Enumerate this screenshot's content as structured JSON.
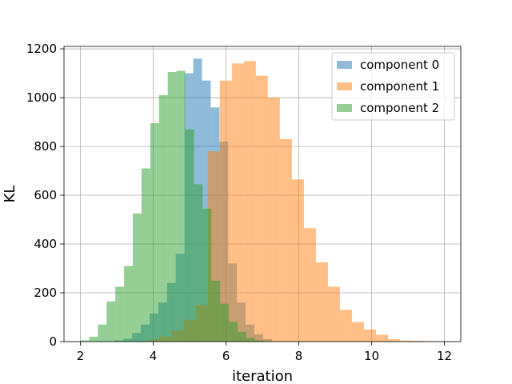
{
  "chart_data": {
    "type": "histogram",
    "title": "",
    "xlabel": "iteration",
    "ylabel": "KL",
    "xlim": [
      1.55,
      12.45
    ],
    "ylim": [
      0,
      1210
    ],
    "xticks": [
      2,
      4,
      6,
      8,
      10,
      12
    ],
    "xtick_labels": [
      "2",
      "4",
      "6",
      "8",
      "10",
      "12"
    ],
    "yticks": [
      0,
      200,
      400,
      600,
      800,
      1000,
      1200
    ],
    "ytick_labels": [
      "0",
      "200",
      "400",
      "600",
      "800",
      "1000",
      "1200"
    ],
    "grid": true,
    "legend_position": "upper-right",
    "bar_opacity": 0.5,
    "series": [
      {
        "name": "component 0",
        "color": "#1f77b4",
        "bins": [
          {
            "x0": 2.94,
            "x1": 3.18,
            "count": 5
          },
          {
            "x0": 3.18,
            "x1": 3.42,
            "count": 12
          },
          {
            "x0": 3.42,
            "x1": 3.66,
            "count": 35
          },
          {
            "x0": 3.66,
            "x1": 3.9,
            "count": 70
          },
          {
            "x0": 3.9,
            "x1": 4.14,
            "count": 115
          },
          {
            "x0": 4.14,
            "x1": 4.38,
            "count": 160
          },
          {
            "x0": 4.38,
            "x1": 4.62,
            "count": 240
          },
          {
            "x0": 4.62,
            "x1": 4.86,
            "count": 360
          },
          {
            "x0": 4.86,
            "x1": 5.1,
            "count": 1100
          },
          {
            "x0": 5.1,
            "x1": 5.34,
            "count": 1160
          },
          {
            "x0": 5.34,
            "x1": 5.58,
            "count": 1070
          },
          {
            "x0": 5.58,
            "x1": 5.82,
            "count": 960
          },
          {
            "x0": 5.82,
            "x1": 6.06,
            "count": 820
          },
          {
            "x0": 6.06,
            "x1": 6.3,
            "count": 320
          },
          {
            "x0": 6.3,
            "x1": 6.54,
            "count": 160
          },
          {
            "x0": 6.54,
            "x1": 6.78,
            "count": 70
          },
          {
            "x0": 6.78,
            "x1": 7.02,
            "count": 30
          },
          {
            "x0": 7.02,
            "x1": 7.26,
            "count": 10
          }
        ]
      },
      {
        "name": "component 1",
        "color": "#ff7f0e",
        "bins": [
          {
            "x0": 3.85,
            "x1": 4.18,
            "count": 8
          },
          {
            "x0": 4.18,
            "x1": 4.51,
            "count": 20
          },
          {
            "x0": 4.51,
            "x1": 4.84,
            "count": 45
          },
          {
            "x0": 4.84,
            "x1": 5.17,
            "count": 90
          },
          {
            "x0": 5.17,
            "x1": 5.5,
            "count": 150
          },
          {
            "x0": 5.5,
            "x1": 5.83,
            "count": 780
          },
          {
            "x0": 5.83,
            "x1": 6.16,
            "count": 1070
          },
          {
            "x0": 6.16,
            "x1": 6.49,
            "count": 1140
          },
          {
            "x0": 6.49,
            "x1": 6.82,
            "count": 1150
          },
          {
            "x0": 6.82,
            "x1": 7.15,
            "count": 1090
          },
          {
            "x0": 7.15,
            "x1": 7.48,
            "count": 1000
          },
          {
            "x0": 7.48,
            "x1": 7.81,
            "count": 830
          },
          {
            "x0": 7.81,
            "x1": 8.14,
            "count": 665
          },
          {
            "x0": 8.14,
            "x1": 8.47,
            "count": 465
          },
          {
            "x0": 8.47,
            "x1": 8.8,
            "count": 325
          },
          {
            "x0": 8.8,
            "x1": 9.13,
            "count": 225
          },
          {
            "x0": 9.13,
            "x1": 9.46,
            "count": 130
          },
          {
            "x0": 9.46,
            "x1": 9.79,
            "count": 80
          },
          {
            "x0": 9.79,
            "x1": 10.12,
            "count": 50
          },
          {
            "x0": 10.12,
            "x1": 10.45,
            "count": 28
          },
          {
            "x0": 10.45,
            "x1": 10.78,
            "count": 10
          },
          {
            "x0": 10.78,
            "x1": 11.11,
            "count": 4
          },
          {
            "x0": 11.11,
            "x1": 11.44,
            "count": 3
          },
          {
            "x0": 11.44,
            "x1": 11.77,
            "count": 2
          },
          {
            "x0": 11.77,
            "x1": 12.1,
            "count": 1
          }
        ]
      },
      {
        "name": "component 2",
        "color": "#2ca02c",
        "bins": [
          {
            "x0": 2.0,
            "x1": 2.24,
            "count": 5
          },
          {
            "x0": 2.24,
            "x1": 2.48,
            "count": 20
          },
          {
            "x0": 2.48,
            "x1": 2.72,
            "count": 70
          },
          {
            "x0": 2.72,
            "x1": 2.96,
            "count": 165
          },
          {
            "x0": 2.96,
            "x1": 3.2,
            "count": 225
          },
          {
            "x0": 3.2,
            "x1": 3.44,
            "count": 310
          },
          {
            "x0": 3.44,
            "x1": 3.68,
            "count": 525
          },
          {
            "x0": 3.68,
            "x1": 3.92,
            "count": 710
          },
          {
            "x0": 3.92,
            "x1": 4.16,
            "count": 895
          },
          {
            "x0": 4.16,
            "x1": 4.4,
            "count": 1010
          },
          {
            "x0": 4.4,
            "x1": 4.64,
            "count": 1105
          },
          {
            "x0": 4.64,
            "x1": 4.88,
            "count": 1110
          },
          {
            "x0": 4.88,
            "x1": 5.12,
            "count": 870
          },
          {
            "x0": 5.12,
            "x1": 5.36,
            "count": 645
          },
          {
            "x0": 5.36,
            "x1": 5.6,
            "count": 545
          },
          {
            "x0": 5.6,
            "x1": 5.84,
            "count": 250
          },
          {
            "x0": 5.84,
            "x1": 6.08,
            "count": 155
          },
          {
            "x0": 6.08,
            "x1": 6.32,
            "count": 80
          },
          {
            "x0": 6.32,
            "x1": 6.56,
            "count": 40
          },
          {
            "x0": 6.56,
            "x1": 6.8,
            "count": 15
          },
          {
            "x0": 6.8,
            "x1": 7.04,
            "count": 5
          }
        ]
      }
    ]
  }
}
